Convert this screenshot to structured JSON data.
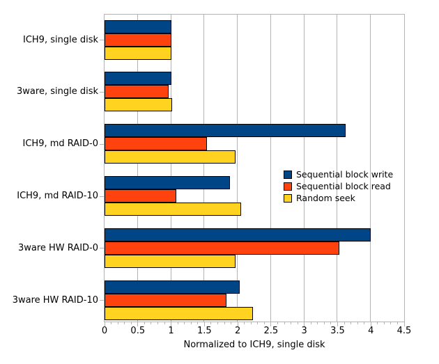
{
  "chart_data": {
    "type": "bar",
    "orientation": "horizontal",
    "title": "",
    "xlabel": "Normalized to ICH9, single disk",
    "ylabel": "",
    "xlim": [
      0,
      4.5
    ],
    "x_tick_labels": [
      "0",
      "0.5",
      "1",
      "1.5",
      "2",
      "2.5",
      "3",
      "3.5",
      "4",
      "4.5"
    ],
    "x_minor_tick_interval": 0.1,
    "grid": "vertical-major",
    "legend_position": "inside-right-middle",
    "categories": [
      "ICH9, single disk",
      "3ware, single disk",
      "ICH9, md RAID-0",
      "ICH9, md RAID-10",
      "3ware HW RAID-0",
      "3ware HW RAID-10"
    ],
    "series": [
      {
        "name": "Sequential block write",
        "color": "#004586",
        "values": [
          1.0,
          1.0,
          3.62,
          1.88,
          4.0,
          2.03
        ]
      },
      {
        "name": "Sequential block read",
        "color": "#ff420e",
        "values": [
          1.0,
          0.96,
          1.54,
          1.08,
          3.53,
          1.83
        ]
      },
      {
        "name": "Random seek",
        "color": "#ffd320",
        "values": [
          1.0,
          1.01,
          1.97,
          2.05,
          1.97,
          2.23
        ]
      }
    ]
  },
  "colors": {
    "background": "#ffffff",
    "grid": "#b3b3b3",
    "axis": "#b3b3b3",
    "bar_border": "#000000",
    "text": "#000000"
  }
}
